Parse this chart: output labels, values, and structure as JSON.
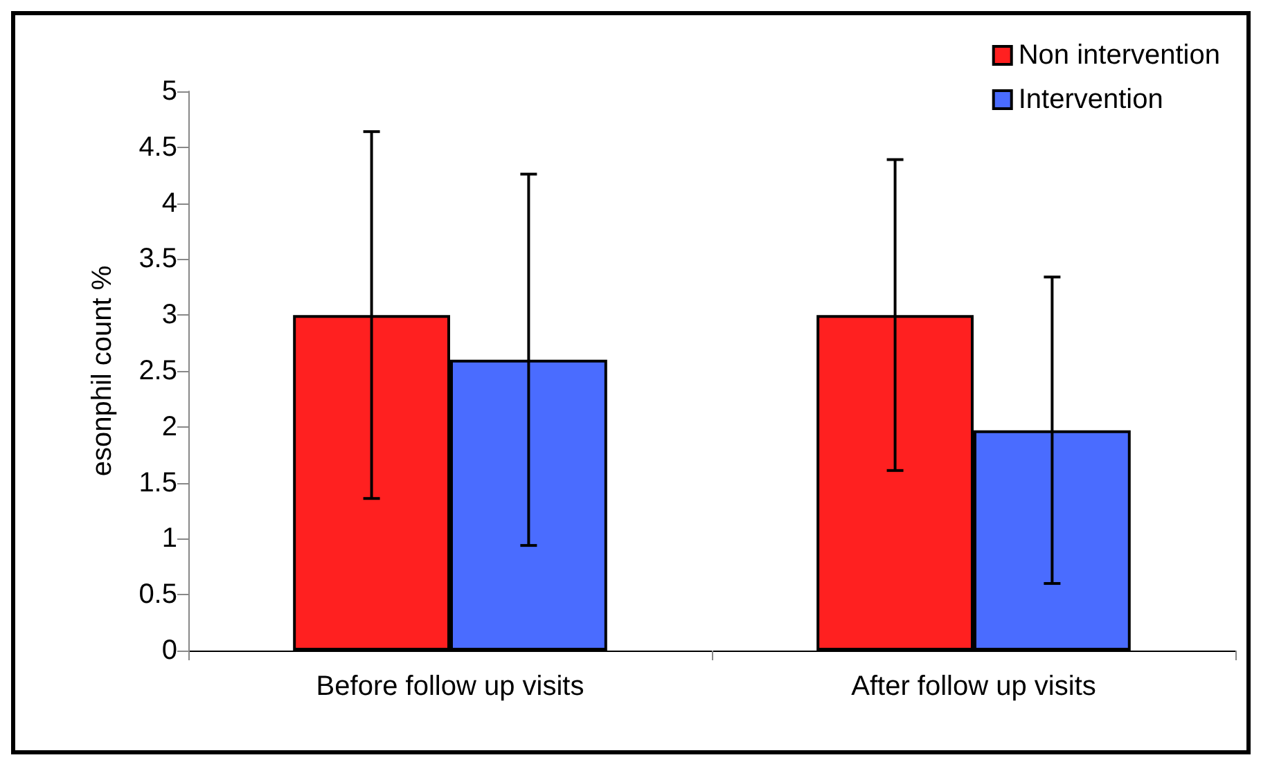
{
  "chart_data": {
    "type": "bar",
    "ylabel": "esonphil count %",
    "categories": [
      "Before follow up visits",
      "After follow up visits"
    ],
    "series": [
      {
        "name": "Non intervention",
        "color": "#ff2020",
        "values": [
          3.0,
          3.0
        ],
        "errors": [
          [
            1.36,
            4.64
          ],
          [
            1.61,
            4.39
          ]
        ]
      },
      {
        "name": "Intervention",
        "color": "#4a6cff",
        "values": [
          2.6,
          1.97
        ],
        "errors": [
          [
            0.94,
            4.26
          ],
          [
            0.6,
            3.34
          ]
        ]
      }
    ],
    "ylim": [
      0,
      5
    ],
    "yticks": [
      0,
      0.5,
      1,
      1.5,
      2,
      2.5,
      3,
      3.5,
      4,
      4.5,
      5
    ],
    "grid": false,
    "legend": "top right"
  }
}
